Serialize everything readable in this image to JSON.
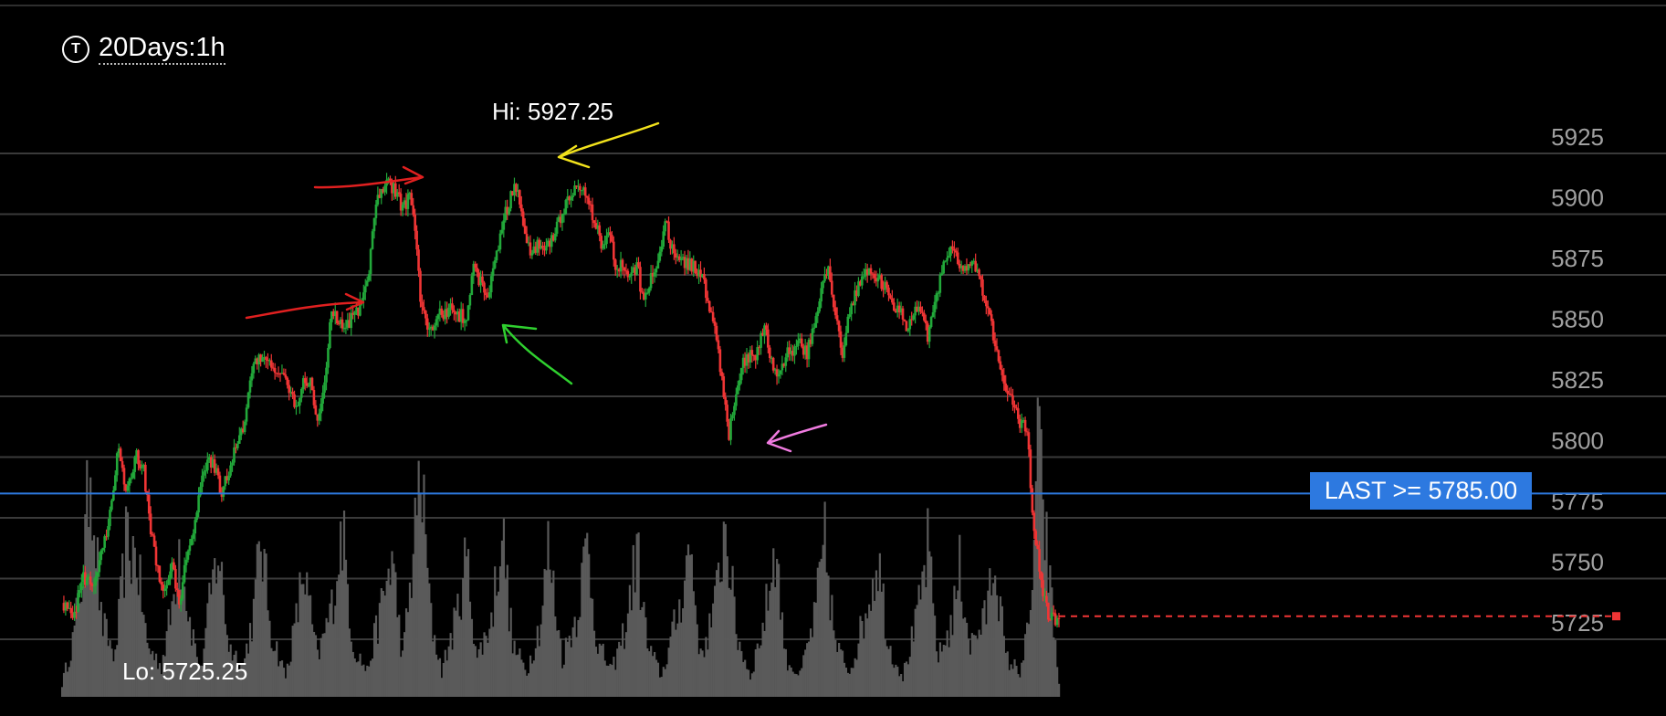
{
  "header": {
    "icon": "T",
    "title": "20Days:1h"
  },
  "annotations": {
    "hi_label": "Hi: 5927.25",
    "lo_label": "Lo: 5725.25",
    "alert_label": "LAST >= 5785.00"
  },
  "colors": {
    "background": "#000000",
    "grid": "#3a3a3a",
    "axis_text": "#a0a0a0",
    "up_candle": "#22a83a",
    "down_candle": "#f03535",
    "volume": "#5a5a5a",
    "alert_line": "#2d79e0",
    "last_price_line": "#f03535",
    "arrow_red": "#e02020",
    "arrow_yellow": "#f2e21c",
    "arrow_green": "#2fd02f",
    "arrow_pink": "#f07be0"
  },
  "chart_data": {
    "type": "candlestick",
    "title": "20Days:1h",
    "y_axis": {
      "ticks": [
        5925,
        5900,
        5875,
        5850,
        5825,
        5800,
        5775,
        5750,
        5725
      ],
      "ylim": [
        5715,
        5940
      ],
      "position": "right"
    },
    "grid": true,
    "high": 5927.25,
    "low": 5725.25,
    "alert_level": 5785.0,
    "last_price": 5734.5,
    "price_path": [
      [
        0,
        5740
      ],
      [
        6,
        5733
      ],
      [
        12,
        5750
      ],
      [
        18,
        5748
      ],
      [
        26,
        5770
      ],
      [
        32,
        5805
      ],
      [
        36,
        5787
      ],
      [
        42,
        5800
      ],
      [
        46,
        5795
      ],
      [
        50,
        5770
      ],
      [
        56,
        5745
      ],
      [
        62,
        5755
      ],
      [
        66,
        5740
      ],
      [
        70,
        5758
      ],
      [
        74,
        5768
      ],
      [
        78,
        5790
      ],
      [
        82,
        5800
      ],
      [
        86,
        5795
      ],
      [
        90,
        5785
      ],
      [
        96,
        5800
      ],
      [
        102,
        5812
      ],
      [
        108,
        5838
      ],
      [
        114,
        5842
      ],
      [
        118,
        5838
      ],
      [
        124,
        5834
      ],
      [
        128,
        5828
      ],
      [
        132,
        5820
      ],
      [
        136,
        5832
      ],
      [
        140,
        5830
      ],
      [
        144,
        5815
      ],
      [
        148,
        5830
      ],
      [
        152,
        5860
      ],
      [
        156,
        5855
      ],
      [
        160,
        5852
      ],
      [
        164,
        5858
      ],
      [
        168,
        5862
      ],
      [
        172,
        5870
      ],
      [
        176,
        5900
      ],
      [
        180,
        5912
      ],
      [
        184,
        5912
      ],
      [
        188,
        5910
      ],
      [
        192,
        5902
      ],
      [
        196,
        5908
      ],
      [
        199,
        5895
      ],
      [
        202,
        5865
      ],
      [
        205,
        5855
      ],
      [
        208,
        5852
      ],
      [
        212,
        5858
      ],
      [
        216,
        5860
      ],
      [
        220,
        5862
      ],
      [
        224,
        5858
      ],
      [
        228,
        5858
      ],
      [
        232,
        5878
      ],
      [
        236,
        5872
      ],
      [
        240,
        5866
      ],
      [
        244,
        5880
      ],
      [
        248,
        5895
      ],
      [
        252,
        5905
      ],
      [
        256,
        5912
      ],
      [
        260,
        5898
      ],
      [
        264,
        5884
      ],
      [
        268,
        5887
      ],
      [
        272,
        5885
      ],
      [
        276,
        5890
      ],
      [
        280,
        5897
      ],
      [
        284,
        5903
      ],
      [
        288,
        5910
      ],
      [
        292,
        5912
      ],
      [
        296,
        5905
      ],
      [
        300,
        5897
      ],
      [
        304,
        5888
      ],
      [
        308,
        5893
      ],
      [
        312,
        5880
      ],
      [
        316,
        5878
      ],
      [
        320,
        5872
      ],
      [
        324,
        5880
      ],
      [
        328,
        5862
      ],
      [
        332,
        5875
      ],
      [
        336,
        5880
      ],
      [
        340,
        5898
      ],
      [
        344,
        5885
      ],
      [
        348,
        5882
      ],
      [
        352,
        5880
      ],
      [
        356,
        5878
      ],
      [
        360,
        5875
      ],
      [
        364,
        5866
      ],
      [
        368,
        5852
      ],
      [
        372,
        5832
      ],
      [
        376,
        5810
      ],
      [
        380,
        5825
      ],
      [
        384,
        5838
      ],
      [
        388,
        5842
      ],
      [
        392,
        5843
      ],
      [
        396,
        5855
      ],
      [
        400,
        5838
      ],
      [
        404,
        5832
      ],
      [
        408,
        5842
      ],
      [
        412,
        5843
      ],
      [
        416,
        5846
      ],
      [
        420,
        5843
      ],
      [
        424,
        5855
      ],
      [
        428,
        5870
      ],
      [
        432,
        5878
      ],
      [
        436,
        5860
      ],
      [
        440,
        5842
      ],
      [
        444,
        5860
      ],
      [
        448,
        5868
      ],
      [
        452,
        5875
      ],
      [
        456,
        5877
      ],
      [
        460,
        5874
      ],
      [
        464,
        5870
      ],
      [
        468,
        5862
      ],
      [
        472,
        5860
      ],
      [
        476,
        5853
      ],
      [
        480,
        5858
      ],
      [
        484,
        5862
      ],
      [
        488,
        5850
      ],
      [
        492,
        5866
      ],
      [
        496,
        5875
      ],
      [
        500,
        5885
      ],
      [
        504,
        5882
      ],
      [
        508,
        5875
      ],
      [
        512,
        5880
      ],
      [
        516,
        5878
      ],
      [
        520,
        5866
      ],
      [
        524,
        5855
      ],
      [
        528,
        5838
      ],
      [
        532,
        5827
      ],
      [
        536,
        5822
      ],
      [
        540,
        5813
      ],
      [
        544,
        5813
      ],
      [
        547,
        5775
      ],
      [
        550,
        5760
      ],
      [
        553,
        5745
      ],
      [
        556,
        5735
      ],
      [
        559,
        5733
      ],
      [
        562,
        5735
      ]
    ],
    "volume_profile": [
      [
        0,
        0.05
      ],
      [
        6,
        0.22
      ],
      [
        12,
        0.5
      ],
      [
        16,
        0.95
      ],
      [
        22,
        0.3
      ],
      [
        30,
        0.15
      ],
      [
        36,
        0.6
      ],
      [
        42,
        0.55
      ],
      [
        48,
        0.2
      ],
      [
        56,
        0.12
      ],
      [
        62,
        0.35
      ],
      [
        66,
        0.6
      ],
      [
        72,
        0.3
      ],
      [
        78,
        0.1
      ],
      [
        84,
        0.4
      ],
      [
        88,
        0.58
      ],
      [
        94,
        0.2
      ],
      [
        102,
        0.12
      ],
      [
        108,
        0.33
      ],
      [
        112,
        0.63
      ],
      [
        118,
        0.25
      ],
      [
        126,
        0.08
      ],
      [
        132,
        0.3
      ],
      [
        136,
        0.5
      ],
      [
        144,
        0.15
      ],
      [
        152,
        0.35
      ],
      [
        158,
        0.66
      ],
      [
        164,
        0.2
      ],
      [
        172,
        0.1
      ],
      [
        180,
        0.35
      ],
      [
        186,
        0.55
      ],
      [
        192,
        0.15
      ],
      [
        198,
        0.55
      ],
      [
        202,
        0.9
      ],
      [
        208,
        0.3
      ],
      [
        214,
        0.1
      ],
      [
        222,
        0.3
      ],
      [
        228,
        0.55
      ],
      [
        234,
        0.15
      ],
      [
        242,
        0.3
      ],
      [
        248,
        0.66
      ],
      [
        254,
        0.2
      ],
      [
        262,
        0.1
      ],
      [
        270,
        0.3
      ],
      [
        274,
        0.58
      ],
      [
        282,
        0.15
      ],
      [
        290,
        0.32
      ],
      [
        296,
        0.6
      ],
      [
        302,
        0.2
      ],
      [
        310,
        0.1
      ],
      [
        318,
        0.28
      ],
      [
        324,
        0.58
      ],
      [
        330,
        0.2
      ],
      [
        338,
        0.08
      ],
      [
        348,
        0.35
      ],
      [
        354,
        0.6
      ],
      [
        360,
        0.15
      ],
      [
        368,
        0.35
      ],
      [
        374,
        0.7
      ],
      [
        380,
        0.25
      ],
      [
        388,
        0.08
      ],
      [
        396,
        0.3
      ],
      [
        402,
        0.6
      ],
      [
        408,
        0.15
      ],
      [
        416,
        0.08
      ],
      [
        424,
        0.3
      ],
      [
        430,
        0.6
      ],
      [
        436,
        0.2
      ],
      [
        444,
        0.1
      ],
      [
        452,
        0.3
      ],
      [
        460,
        0.55
      ],
      [
        466,
        0.2
      ],
      [
        474,
        0.08
      ],
      [
        482,
        0.3
      ],
      [
        488,
        0.58
      ],
      [
        494,
        0.15
      ],
      [
        502,
        0.3
      ],
      [
        506,
        0.5
      ],
      [
        512,
        0.2
      ],
      [
        520,
        0.3
      ],
      [
        526,
        0.55
      ],
      [
        532,
        0.15
      ],
      [
        540,
        0.1
      ],
      [
        546,
        0.3
      ],
      [
        550,
        1.0
      ],
      [
        556,
        0.5
      ],
      [
        562,
        0.05
      ]
    ]
  }
}
